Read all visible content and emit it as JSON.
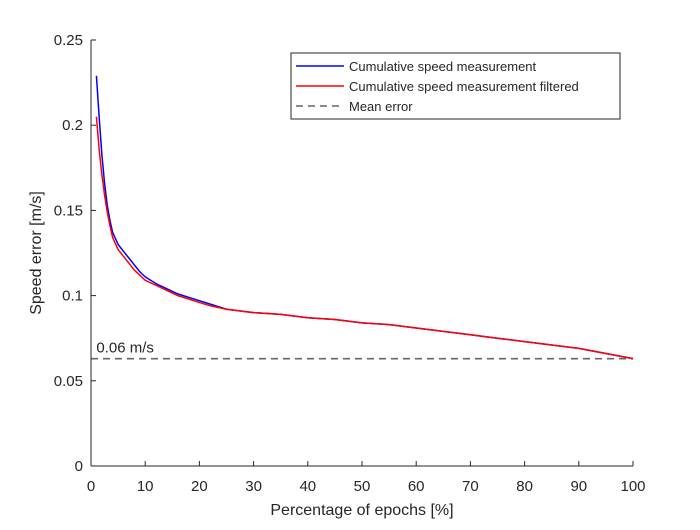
{
  "chart_data": {
    "type": "line",
    "title": "",
    "xlabel": "Percentage of epochs [%]",
    "ylabel": "Speed error [m/s]",
    "xlim": [
      0,
      100
    ],
    "ylim": [
      0,
      0.25
    ],
    "xticks": [
      0,
      10,
      20,
      30,
      40,
      50,
      60,
      70,
      80,
      90,
      100
    ],
    "yticks": [
      0,
      0.05,
      0.1,
      0.15,
      0.2,
      0.25
    ],
    "xtick_labels": [
      "0",
      "10",
      "20",
      "30",
      "40",
      "50",
      "60",
      "70",
      "80",
      "90",
      "100"
    ],
    "ytick_labels": [
      "0",
      "0.05",
      "0.1",
      "0.15",
      "0.2",
      "0.25"
    ],
    "grid": false,
    "legend_position": "top-right",
    "series": [
      {
        "name": "Cumulative speed measurement",
        "color": "#0000ff",
        "style": "solid",
        "x": [
          1,
          1.5,
          2,
          2.5,
          3,
          3.5,
          4,
          5,
          6,
          7,
          8,
          9,
          10,
          12,
          14,
          16,
          18,
          20,
          22,
          25,
          30,
          35,
          40,
          45,
          50,
          55,
          60,
          65,
          70,
          75,
          80,
          85,
          90,
          95,
          100
        ],
        "values": [
          0.229,
          0.205,
          0.183,
          0.166,
          0.153,
          0.144,
          0.137,
          0.13,
          0.126,
          0.122,
          0.118,
          0.114,
          0.111,
          0.107,
          0.104,
          0.101,
          0.099,
          0.097,
          0.095,
          0.092,
          0.09,
          0.089,
          0.087,
          0.086,
          0.084,
          0.083,
          0.081,
          0.079,
          0.077,
          0.075,
          0.073,
          0.071,
          0.069,
          0.066,
          0.063
        ]
      },
      {
        "name": "Cumulative speed measurement filtered",
        "color": "#ff0000",
        "style": "solid",
        "x": [
          1,
          1.5,
          2,
          2.5,
          3,
          3.5,
          4,
          5,
          6,
          7,
          8,
          9,
          10,
          12,
          14,
          16,
          18,
          20,
          22,
          25,
          30,
          35,
          40,
          45,
          50,
          55,
          60,
          65,
          70,
          75,
          80,
          85,
          90,
          95,
          100
        ],
        "values": [
          0.205,
          0.186,
          0.171,
          0.159,
          0.149,
          0.141,
          0.134,
          0.127,
          0.123,
          0.119,
          0.115,
          0.112,
          0.109,
          0.106,
          0.103,
          0.1,
          0.098,
          0.096,
          0.094,
          0.092,
          0.09,
          0.089,
          0.087,
          0.086,
          0.084,
          0.083,
          0.081,
          0.079,
          0.077,
          0.075,
          0.073,
          0.071,
          0.069,
          0.066,
          0.063
        ]
      },
      {
        "name": "Mean error",
        "color": "#666666",
        "style": "dashed",
        "x": [
          0,
          100
        ],
        "values": [
          0.063,
          0.063
        ]
      }
    ],
    "annotations": [
      {
        "text": "0.06 m/s",
        "x": 1,
        "y": 0.063
      }
    ]
  }
}
